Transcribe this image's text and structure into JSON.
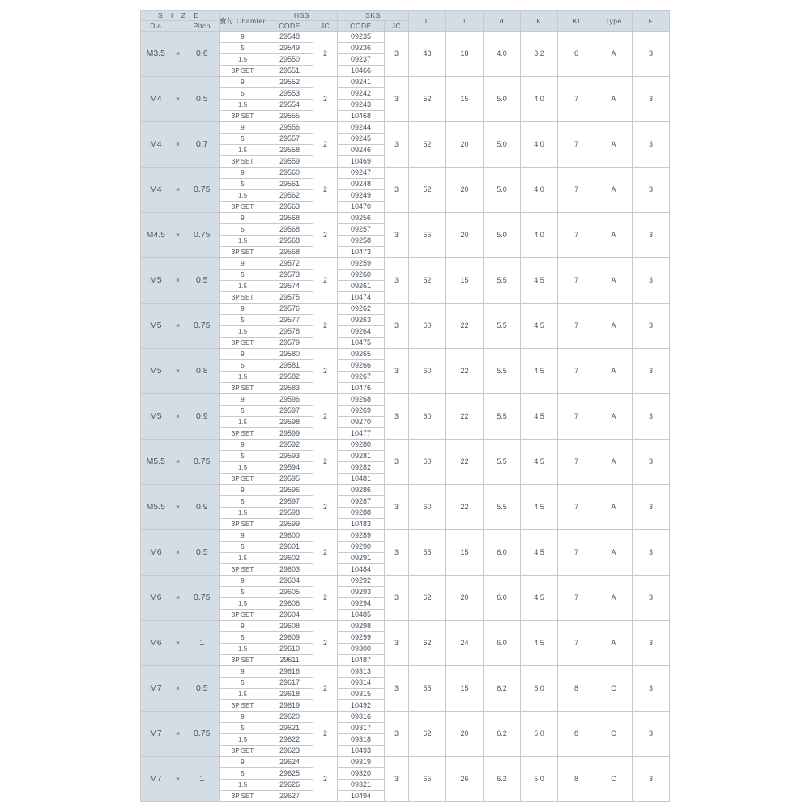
{
  "colors": {
    "header_bg": "#d4dde6",
    "border": "#c8c8c8",
    "text": "#4a5560",
    "page_bg": "#ffffff"
  },
  "header": {
    "size": "S I Z E",
    "dia": "Dia",
    "pitch": "Pitch",
    "chamfer": "食付 Chamfer",
    "hss": "HSS",
    "sks": "SKS",
    "code": "CODE",
    "jc": "JC",
    "L": "L",
    "l": "l",
    "d": "d",
    "K": "K",
    "Kl": "Kl",
    "Type": "Type",
    "F": "F"
  },
  "chamfer_labels": [
    "9",
    "5",
    "1.5",
    "3P SET"
  ],
  "groups": [
    {
      "dia": "M3.5",
      "pitch": "0.6",
      "hss": [
        "29548",
        "29549",
        "29550",
        "29551"
      ],
      "hss_jc": "2",
      "sks": [
        "09235",
        "09236",
        "09237",
        "10466"
      ],
      "sks_jc": "3",
      "L": "48",
      "l": "18",
      "d": "4.0",
      "K": "3.2",
      "Kl": "6",
      "Type": "A",
      "F": "3"
    },
    {
      "dia": "M4",
      "pitch": "0.5",
      "hss": [
        "29552",
        "29553",
        "29554",
        "29555"
      ],
      "hss_jc": "2",
      "sks": [
        "09241",
        "09242",
        "09243",
        "10468"
      ],
      "sks_jc": "3",
      "L": "52",
      "l": "15",
      "d": "5.0",
      "K": "4.0",
      "Kl": "7",
      "Type": "A",
      "F": "3"
    },
    {
      "dia": "M4",
      "pitch": "0.7",
      "hss": [
        "29556",
        "29557",
        "29558",
        "29559"
      ],
      "hss_jc": "2",
      "sks": [
        "09244",
        "09245",
        "09246",
        "10469"
      ],
      "sks_jc": "3",
      "L": "52",
      "l": "20",
      "d": "5.0",
      "K": "4.0",
      "Kl": "7",
      "Type": "A",
      "F": "3"
    },
    {
      "dia": "M4",
      "pitch": "0.75",
      "hss": [
        "29560",
        "29561",
        "29562",
        "29563"
      ],
      "hss_jc": "2",
      "sks": [
        "09247",
        "09248",
        "09249",
        "10470"
      ],
      "sks_jc": "3",
      "L": "52",
      "l": "20",
      "d": "5.0",
      "K": "4.0",
      "Kl": "7",
      "Type": "A",
      "F": "3"
    },
    {
      "dia": "M4.5",
      "pitch": "0.75",
      "hss": [
        "29568",
        "29568",
        "29568",
        "29568"
      ],
      "hss_jc": "2",
      "sks": [
        "09256",
        "09257",
        "09258",
        "10473"
      ],
      "sks_jc": "3",
      "L": "55",
      "l": "20",
      "d": "5.0",
      "K": "4.0",
      "Kl": "7",
      "Type": "A",
      "F": "3"
    },
    {
      "dia": "M5",
      "pitch": "0.5",
      "hss": [
        "29572",
        "29573",
        "29574",
        "29575"
      ],
      "hss_jc": "2",
      "sks": [
        "09259",
        "09260",
        "09261",
        "10474"
      ],
      "sks_jc": "3",
      "L": "52",
      "l": "15",
      "d": "5.5",
      "K": "4.5",
      "Kl": "7",
      "Type": "A",
      "F": "3"
    },
    {
      "dia": "M5",
      "pitch": "0.75",
      "hss": [
        "29576",
        "29577",
        "29578",
        "29579"
      ],
      "hss_jc": "2",
      "sks": [
        "09262",
        "09263",
        "09264",
        "10475"
      ],
      "sks_jc": "3",
      "L": "60",
      "l": "22",
      "d": "5.5",
      "K": "4.5",
      "Kl": "7",
      "Type": "A",
      "F": "3"
    },
    {
      "dia": "M5",
      "pitch": "0.8",
      "hss": [
        "29580",
        "29581",
        "29582",
        "29583"
      ],
      "hss_jc": "2",
      "sks": [
        "09265",
        "09266",
        "09267",
        "10476"
      ],
      "sks_jc": "3",
      "L": "60",
      "l": "22",
      "d": "5.5",
      "K": "4.5",
      "Kl": "7",
      "Type": "A",
      "F": "3"
    },
    {
      "dia": "M5",
      "pitch": "0.9",
      "hss": [
        "29596",
        "29597",
        "29598",
        "29599"
      ],
      "hss_jc": "2",
      "sks": [
        "09268",
        "09269",
        "09270",
        "10477"
      ],
      "sks_jc": "3",
      "L": "60",
      "l": "22",
      "d": "5.5",
      "K": "4.5",
      "Kl": "7",
      "Type": "A",
      "F": "3"
    },
    {
      "dia": "M5.5",
      "pitch": "0.75",
      "hss": [
        "29592",
        "29593",
        "29594",
        "29595"
      ],
      "hss_jc": "2",
      "sks": [
        "09280",
        "09281",
        "09282",
        "10481"
      ],
      "sks_jc": "3",
      "L": "60",
      "l": "22",
      "d": "5.5",
      "K": "4.5",
      "Kl": "7",
      "Type": "A",
      "F": "3"
    },
    {
      "dia": "M5.5",
      "pitch": "0.9",
      "hss": [
        "29596",
        "29597",
        "29598",
        "29599"
      ],
      "hss_jc": "2",
      "sks": [
        "09286",
        "09287",
        "09288",
        "10483"
      ],
      "sks_jc": "3",
      "L": "60",
      "l": "22",
      "d": "5.5",
      "K": "4.5",
      "Kl": "7",
      "Type": "A",
      "F": "3"
    },
    {
      "dia": "M6",
      "pitch": "0.5",
      "hss": [
        "29600",
        "29601",
        "29602",
        "29603"
      ],
      "hss_jc": "2",
      "sks": [
        "09289",
        "09290",
        "09291",
        "10484"
      ],
      "sks_jc": "3",
      "L": "55",
      "l": "15",
      "d": "6.0",
      "K": "4.5",
      "Kl": "7",
      "Type": "A",
      "F": "3"
    },
    {
      "dia": "M6",
      "pitch": "0.75",
      "hss": [
        "29604",
        "29605",
        "29606",
        "29604"
      ],
      "hss_jc": "2",
      "sks": [
        "09292",
        "09293",
        "09294",
        "10485"
      ],
      "sks_jc": "3",
      "L": "62",
      "l": "20",
      "d": "6.0",
      "K": "4.5",
      "Kl": "7",
      "Type": "A",
      "F": "3"
    },
    {
      "dia": "M6",
      "pitch": "1",
      "hss": [
        "29608",
        "29609",
        "29610",
        "29611"
      ],
      "hss_jc": "2",
      "sks": [
        "09298",
        "09299",
        "09300",
        "10487"
      ],
      "sks_jc": "3",
      "L": "62",
      "l": "24",
      "d": "6.0",
      "K": "4.5",
      "Kl": "7",
      "Type": "A",
      "F": "3"
    },
    {
      "dia": "M7",
      "pitch": "0.5",
      "hss": [
        "29616",
        "29617",
        "29618",
        "29619"
      ],
      "hss_jc": "2",
      "sks": [
        "09313",
        "09314",
        "09315",
        "10492"
      ],
      "sks_jc": "3",
      "L": "55",
      "l": "15",
      "d": "6.2",
      "K": "5.0",
      "Kl": "8",
      "Type": "C",
      "F": "3"
    },
    {
      "dia": "M7",
      "pitch": "0.75",
      "hss": [
        "29620",
        "29621",
        "29622",
        "29623"
      ],
      "hss_jc": "2",
      "sks": [
        "09316",
        "09317",
        "09318",
        "10493"
      ],
      "sks_jc": "3",
      "L": "62",
      "l": "20",
      "d": "6.2",
      "K": "5.0",
      "Kl": "8",
      "Type": "C",
      "F": "3"
    },
    {
      "dia": "M7",
      "pitch": "1",
      "hss": [
        "29624",
        "29625",
        "29626",
        "29627"
      ],
      "hss_jc": "2",
      "sks": [
        "09319",
        "09320",
        "09321",
        "10494"
      ],
      "sks_jc": "3",
      "L": "65",
      "l": "26",
      "d": "6.2",
      "K": "5.0",
      "Kl": "8",
      "Type": "C",
      "F": "3"
    }
  ]
}
